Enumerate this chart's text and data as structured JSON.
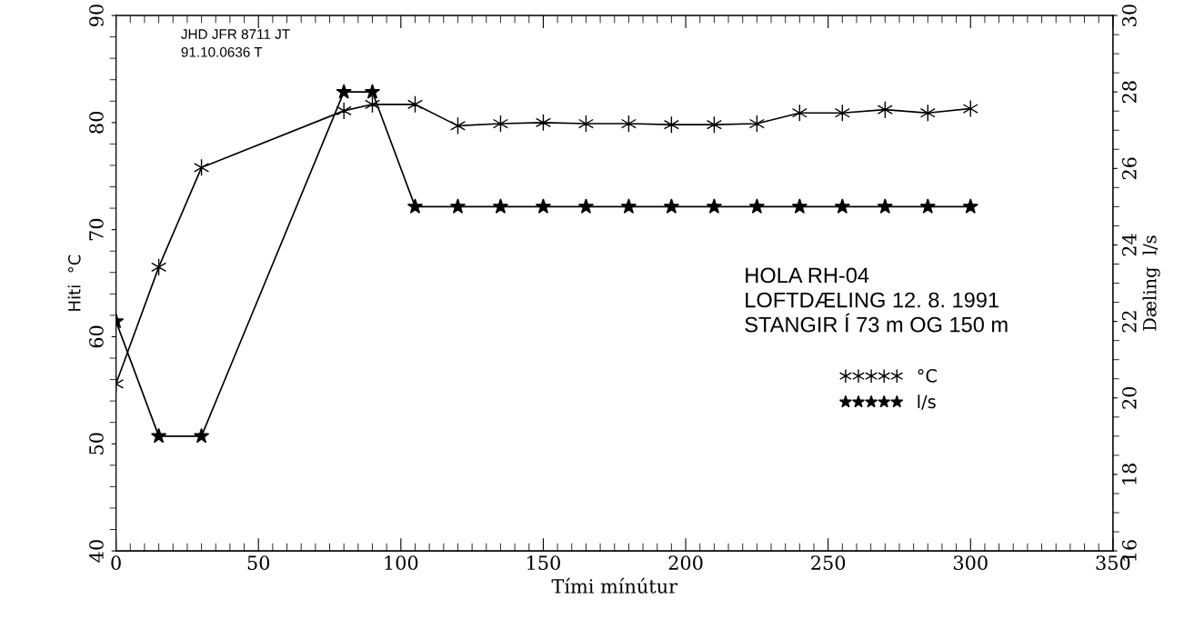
{
  "chart_data": {
    "type": "line",
    "xlabel": "Tími mínútur",
    "ylabel": "Hiti  °C",
    "y2label": "Dæling  l/s",
    "x": [
      0,
      15,
      30,
      80,
      90,
      105,
      120,
      135,
      150,
      165,
      180,
      195,
      210,
      225,
      240,
      255,
      270,
      285,
      300
    ],
    "series": [
      {
        "name": "°C",
        "color": "#000000",
        "marker": "cross",
        "values": [
          55.6,
          66.5,
          75.8,
          81.1,
          81.7,
          81.7,
          79.7,
          79.9,
          80.0,
          79.9,
          79.9,
          79.8,
          79.8,
          79.9,
          80.9,
          80.9,
          81.2,
          80.9,
          81.3
        ]
      },
      {
        "name": "l/s",
        "color": "#000000",
        "marker": "star",
        "axis": "y2",
        "values": [
          22.0,
          19.0,
          19.0,
          28.0,
          28.0,
          25.0,
          25.0,
          25.0,
          25.0,
          25.0,
          25.0,
          25.0,
          25.0,
          25.0,
          25.0,
          25.0,
          25.0,
          25.0,
          25.0
        ]
      }
    ],
    "xlim": [
      0,
      350
    ],
    "xticks": [
      0,
      50,
      100,
      150,
      200,
      250,
      300,
      350
    ],
    "ylim": [
      40,
      90
    ],
    "yticks": [
      40,
      50,
      60,
      70,
      80,
      90
    ],
    "y2lim": [
      16,
      30
    ],
    "y2ticks": [
      16,
      18,
      20,
      22,
      24,
      26,
      28,
      30
    ],
    "grid": false,
    "legend": "right",
    "line_style": "solid",
    "annotations": [
      "JHD JFR 8711 JT",
      "91.10.0636 T",
      "HOLA RH-04",
      "LOFTDÆLING 12. 8. 1991",
      "STANGIR Í 73 m OG 150 m"
    ]
  }
}
